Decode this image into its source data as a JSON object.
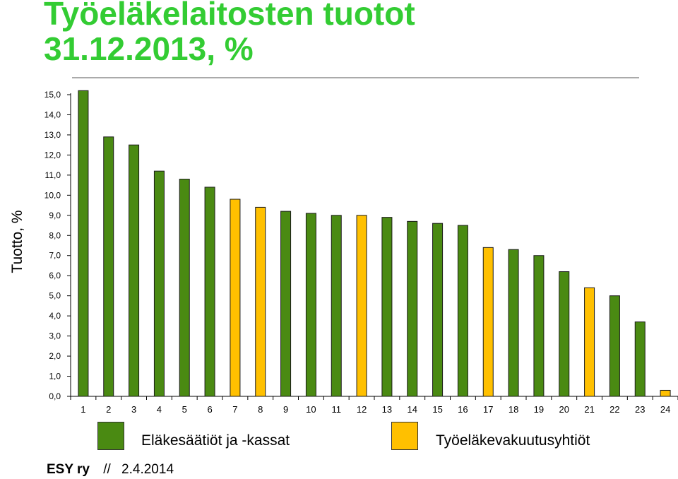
{
  "title_lines": [
    "Työeläkelaitosten tuotot",
    "31.12.2013, %"
  ],
  "ylabel": "Tuotto, %",
  "footer": {
    "org": "ESY ry",
    "sep": "//",
    "date": "2.4.2014"
  },
  "colors": {
    "title": "#33cc33",
    "green": "#4a8a12",
    "yellow": "#ffc000"
  },
  "legend": [
    {
      "label": "Eläkesäätiöt ja -kassat",
      "color": "#4a8a12"
    },
    {
      "label": "Työeläkevakuutusyhtiöt",
      "color": "#ffc000"
    }
  ],
  "chart_data": {
    "type": "bar",
    "categories": [
      "1",
      "2",
      "3",
      "4",
      "5",
      "6",
      "7",
      "8",
      "9",
      "10",
      "11",
      "12",
      "13",
      "14",
      "15",
      "16",
      "17",
      "18",
      "19",
      "20",
      "21",
      "22",
      "23",
      "24"
    ],
    "values": [
      15.2,
      12.9,
      12.5,
      11.2,
      10.8,
      10.4,
      9.8,
      9.4,
      9.2,
      9.1,
      9.0,
      9.0,
      8.9,
      8.7,
      8.6,
      8.5,
      7.4,
      7.3,
      7.0,
      6.2,
      5.4,
      5.0,
      3.7,
      0.3
    ],
    "groups": [
      "green",
      "green",
      "green",
      "green",
      "green",
      "green",
      "yellow",
      "yellow",
      "green",
      "green",
      "green",
      "yellow",
      "green",
      "green",
      "green",
      "green",
      "yellow",
      "green",
      "green",
      "green",
      "yellow",
      "green",
      "green",
      "yellow"
    ],
    "yticks": [
      "0,0",
      "1,0",
      "2,0",
      "3,0",
      "4,0",
      "5,0",
      "6,0",
      "7,0",
      "8,0",
      "9,0",
      "10,0",
      "11,0",
      "12,0",
      "13,0",
      "14,0",
      "15,0"
    ],
    "ylim": [
      0,
      15
    ],
    "ylabel": "Tuotto, %",
    "legend_position": "bottom"
  }
}
